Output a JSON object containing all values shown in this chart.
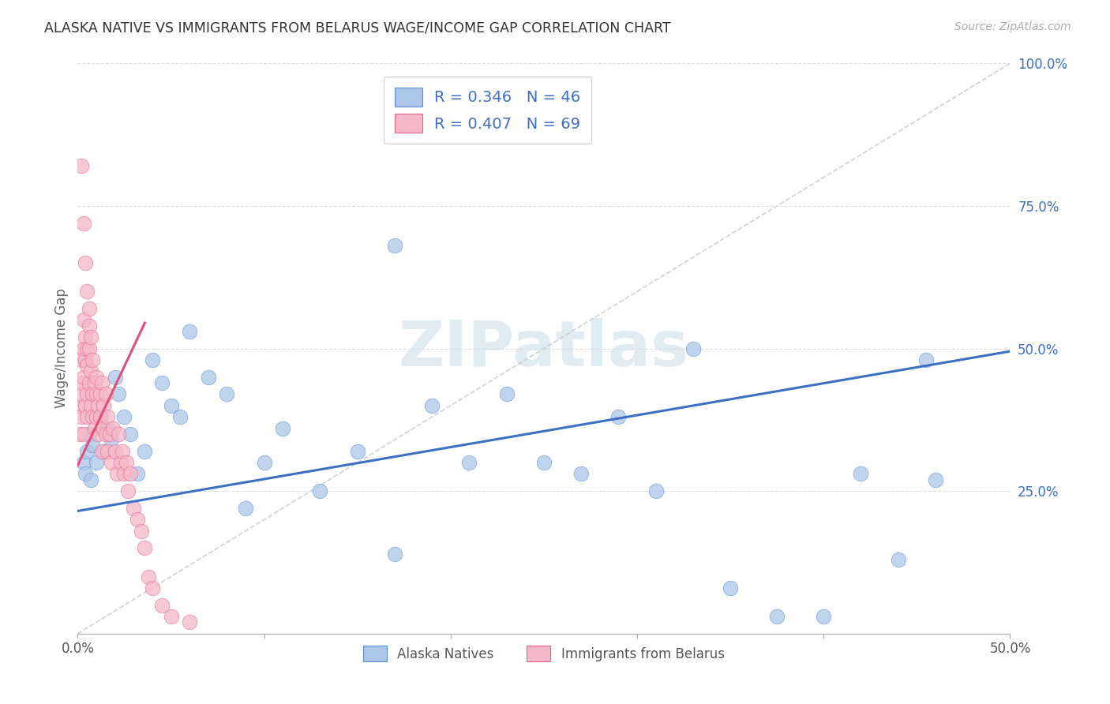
{
  "title": "ALASKA NATIVE VS IMMIGRANTS FROM BELARUS WAGE/INCOME GAP CORRELATION CHART",
  "source": "Source: ZipAtlas.com",
  "ylabel": "Wage/Income Gap",
  "xlim": [
    0.0,
    0.5
  ],
  "ylim": [
    0.0,
    1.0
  ],
  "xtick_vals": [
    0.0,
    0.1,
    0.2,
    0.3,
    0.4,
    0.5
  ],
  "xtick_labels": [
    "0.0%",
    "",
    "",
    "",
    "",
    "50.0%"
  ],
  "ytick_vals": [
    0.25,
    0.5,
    0.75,
    1.0
  ],
  "ytick_labels": [
    "25.0%",
    "50.0%",
    "75.0%",
    "100.0%"
  ],
  "alaska_color": "#adc6e8",
  "belarus_color": "#f5b8c8",
  "alaska_edge_color": "#5b8fd4",
  "belarus_edge_color": "#e8608a",
  "alaska_line_color": "#3d6fc4",
  "belarus_line_color": "#e0507a",
  "R_alaska": 0.346,
  "N_alaska": 46,
  "R_belarus": 0.407,
  "N_belarus": 69,
  "alaska_line_x": [
    0.0,
    0.5
  ],
  "alaska_line_y": [
    0.215,
    0.495
  ],
  "belarus_line_x": [
    0.0,
    0.036
  ],
  "belarus_line_y": [
    0.295,
    0.545
  ],
  "diag_line_x": [
    0.0,
    0.5
  ],
  "diag_line_y": [
    0.0,
    1.0
  ],
  "watermark_text": "ZIPatlas",
  "alaska_x": [
    0.003,
    0.004,
    0.005,
    0.006,
    0.007,
    0.008,
    0.01,
    0.012,
    0.014,
    0.016,
    0.018,
    0.02,
    0.022,
    0.025,
    0.028,
    0.032,
    0.036,
    0.04,
    0.045,
    0.05,
    0.055,
    0.06,
    0.07,
    0.08,
    0.09,
    0.1,
    0.11,
    0.13,
    0.15,
    0.17,
    0.19,
    0.21,
    0.23,
    0.25,
    0.27,
    0.29,
    0.31,
    0.33,
    0.35,
    0.375,
    0.4,
    0.42,
    0.44,
    0.455,
    0.46,
    0.17
  ],
  "alaska_y": [
    0.3,
    0.28,
    0.32,
    0.35,
    0.27,
    0.33,
    0.3,
    0.38,
    0.32,
    0.36,
    0.34,
    0.45,
    0.42,
    0.38,
    0.35,
    0.28,
    0.32,
    0.48,
    0.44,
    0.4,
    0.38,
    0.53,
    0.45,
    0.42,
    0.22,
    0.3,
    0.36,
    0.25,
    0.32,
    0.14,
    0.4,
    0.3,
    0.42,
    0.3,
    0.28,
    0.38,
    0.25,
    0.5,
    0.08,
    0.03,
    0.03,
    0.28,
    0.13,
    0.48,
    0.27,
    0.68
  ],
  "belarus_x": [
    0.001,
    0.001,
    0.001,
    0.002,
    0.002,
    0.002,
    0.003,
    0.003,
    0.003,
    0.003,
    0.004,
    0.004,
    0.004,
    0.005,
    0.005,
    0.005,
    0.005,
    0.006,
    0.006,
    0.006,
    0.007,
    0.007,
    0.007,
    0.008,
    0.008,
    0.008,
    0.009,
    0.009,
    0.01,
    0.01,
    0.01,
    0.011,
    0.011,
    0.012,
    0.012,
    0.013,
    0.013,
    0.014,
    0.014,
    0.015,
    0.015,
    0.016,
    0.016,
    0.017,
    0.018,
    0.019,
    0.02,
    0.021,
    0.022,
    0.023,
    0.024,
    0.025,
    0.026,
    0.027,
    0.028,
    0.03,
    0.032,
    0.034,
    0.036,
    0.038,
    0.04,
    0.045,
    0.05,
    0.06,
    0.002,
    0.003,
    0.004,
    0.005,
    0.006
  ],
  "belarus_y": [
    0.35,
    0.4,
    0.42,
    0.38,
    0.44,
    0.48,
    0.35,
    0.45,
    0.5,
    0.55,
    0.4,
    0.48,
    0.52,
    0.42,
    0.47,
    0.5,
    0.38,
    0.44,
    0.5,
    0.54,
    0.4,
    0.46,
    0.52,
    0.42,
    0.48,
    0.38,
    0.44,
    0.36,
    0.42,
    0.38,
    0.45,
    0.4,
    0.35,
    0.42,
    0.38,
    0.44,
    0.32,
    0.4,
    0.36,
    0.42,
    0.35,
    0.38,
    0.32,
    0.35,
    0.3,
    0.36,
    0.32,
    0.28,
    0.35,
    0.3,
    0.32,
    0.28,
    0.3,
    0.25,
    0.28,
    0.22,
    0.2,
    0.18,
    0.15,
    0.1,
    0.08,
    0.05,
    0.03,
    0.02,
    0.82,
    0.72,
    0.65,
    0.6,
    0.57
  ]
}
